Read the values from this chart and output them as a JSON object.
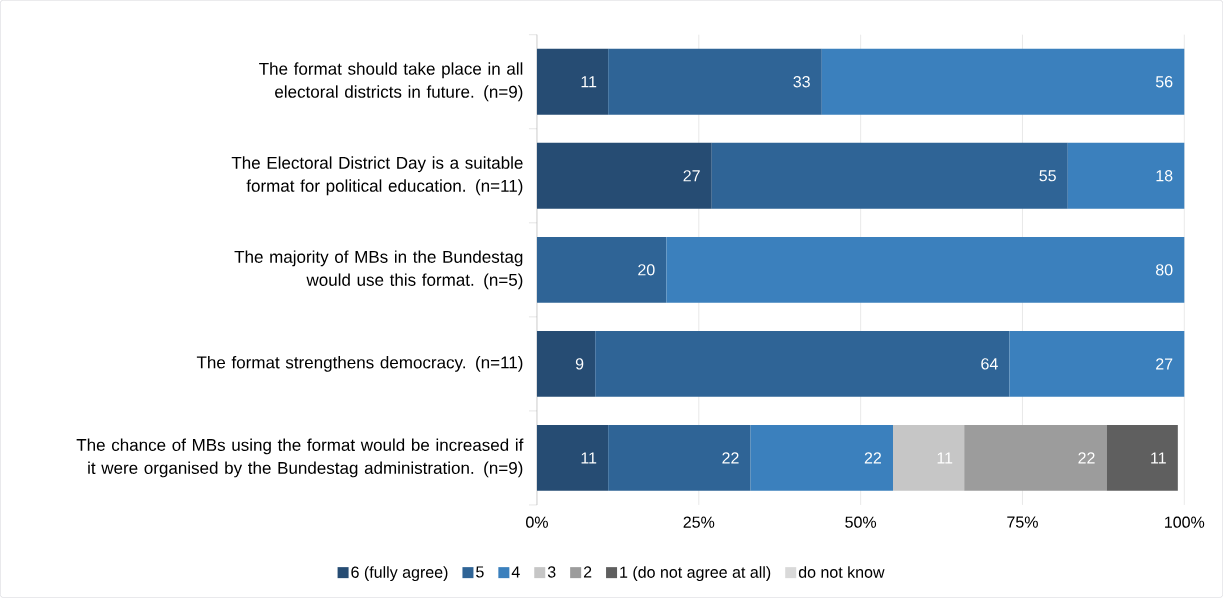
{
  "chart_data": {
    "type": "bar",
    "orientation": "horizontal",
    "stacked": true,
    "data_labels": true,
    "grid": "x",
    "legend": "bottom",
    "categories": [
      "The format should take place in all electoral districts in future. (n=9)",
      "The Electoral District Day is a suitable format for political education. (n=11)",
      "The majority of MBs in the Bundestag would use this format. (n=5)",
      "The format strengthens democracy. (n=11)",
      "The chance of MBs using the format would be increased if it were organised by the Bundestag administration. (n=9)"
    ],
    "xlim": [
      0,
      100
    ],
    "xticks": [
      {
        "value": 0,
        "label": "0%"
      },
      {
        "value": 25,
        "label": "25%"
      },
      {
        "value": 50,
        "label": "50%"
      },
      {
        "value": 75,
        "label": "75%"
      },
      {
        "value": 100,
        "label": "100%"
      }
    ],
    "series": [
      {
        "name": "6 (fully agree)",
        "color": "#264c73",
        "values": [
          11,
          27,
          null,
          9,
          11
        ]
      },
      {
        "name": "5",
        "color": "#2f6496",
        "values": [
          33,
          55,
          20,
          64,
          22
        ]
      },
      {
        "name": "4",
        "color": "#3b80bd",
        "values": [
          56,
          18,
          80,
          27,
          22
        ]
      },
      {
        "name": "3",
        "color": "#c6c6c6",
        "values": [
          null,
          null,
          null,
          null,
          11
        ]
      },
      {
        "name": "2",
        "color": "#9c9c9c",
        "values": [
          null,
          null,
          null,
          null,
          22
        ]
      },
      {
        "name": "1 (do not agree at all)",
        "color": "#5f5f5f",
        "values": [
          null,
          null,
          null,
          null,
          11
        ]
      },
      {
        "name": "do not know",
        "color": "#d9d9d9",
        "values": [
          null,
          null,
          null,
          null,
          null
        ]
      }
    ]
  }
}
